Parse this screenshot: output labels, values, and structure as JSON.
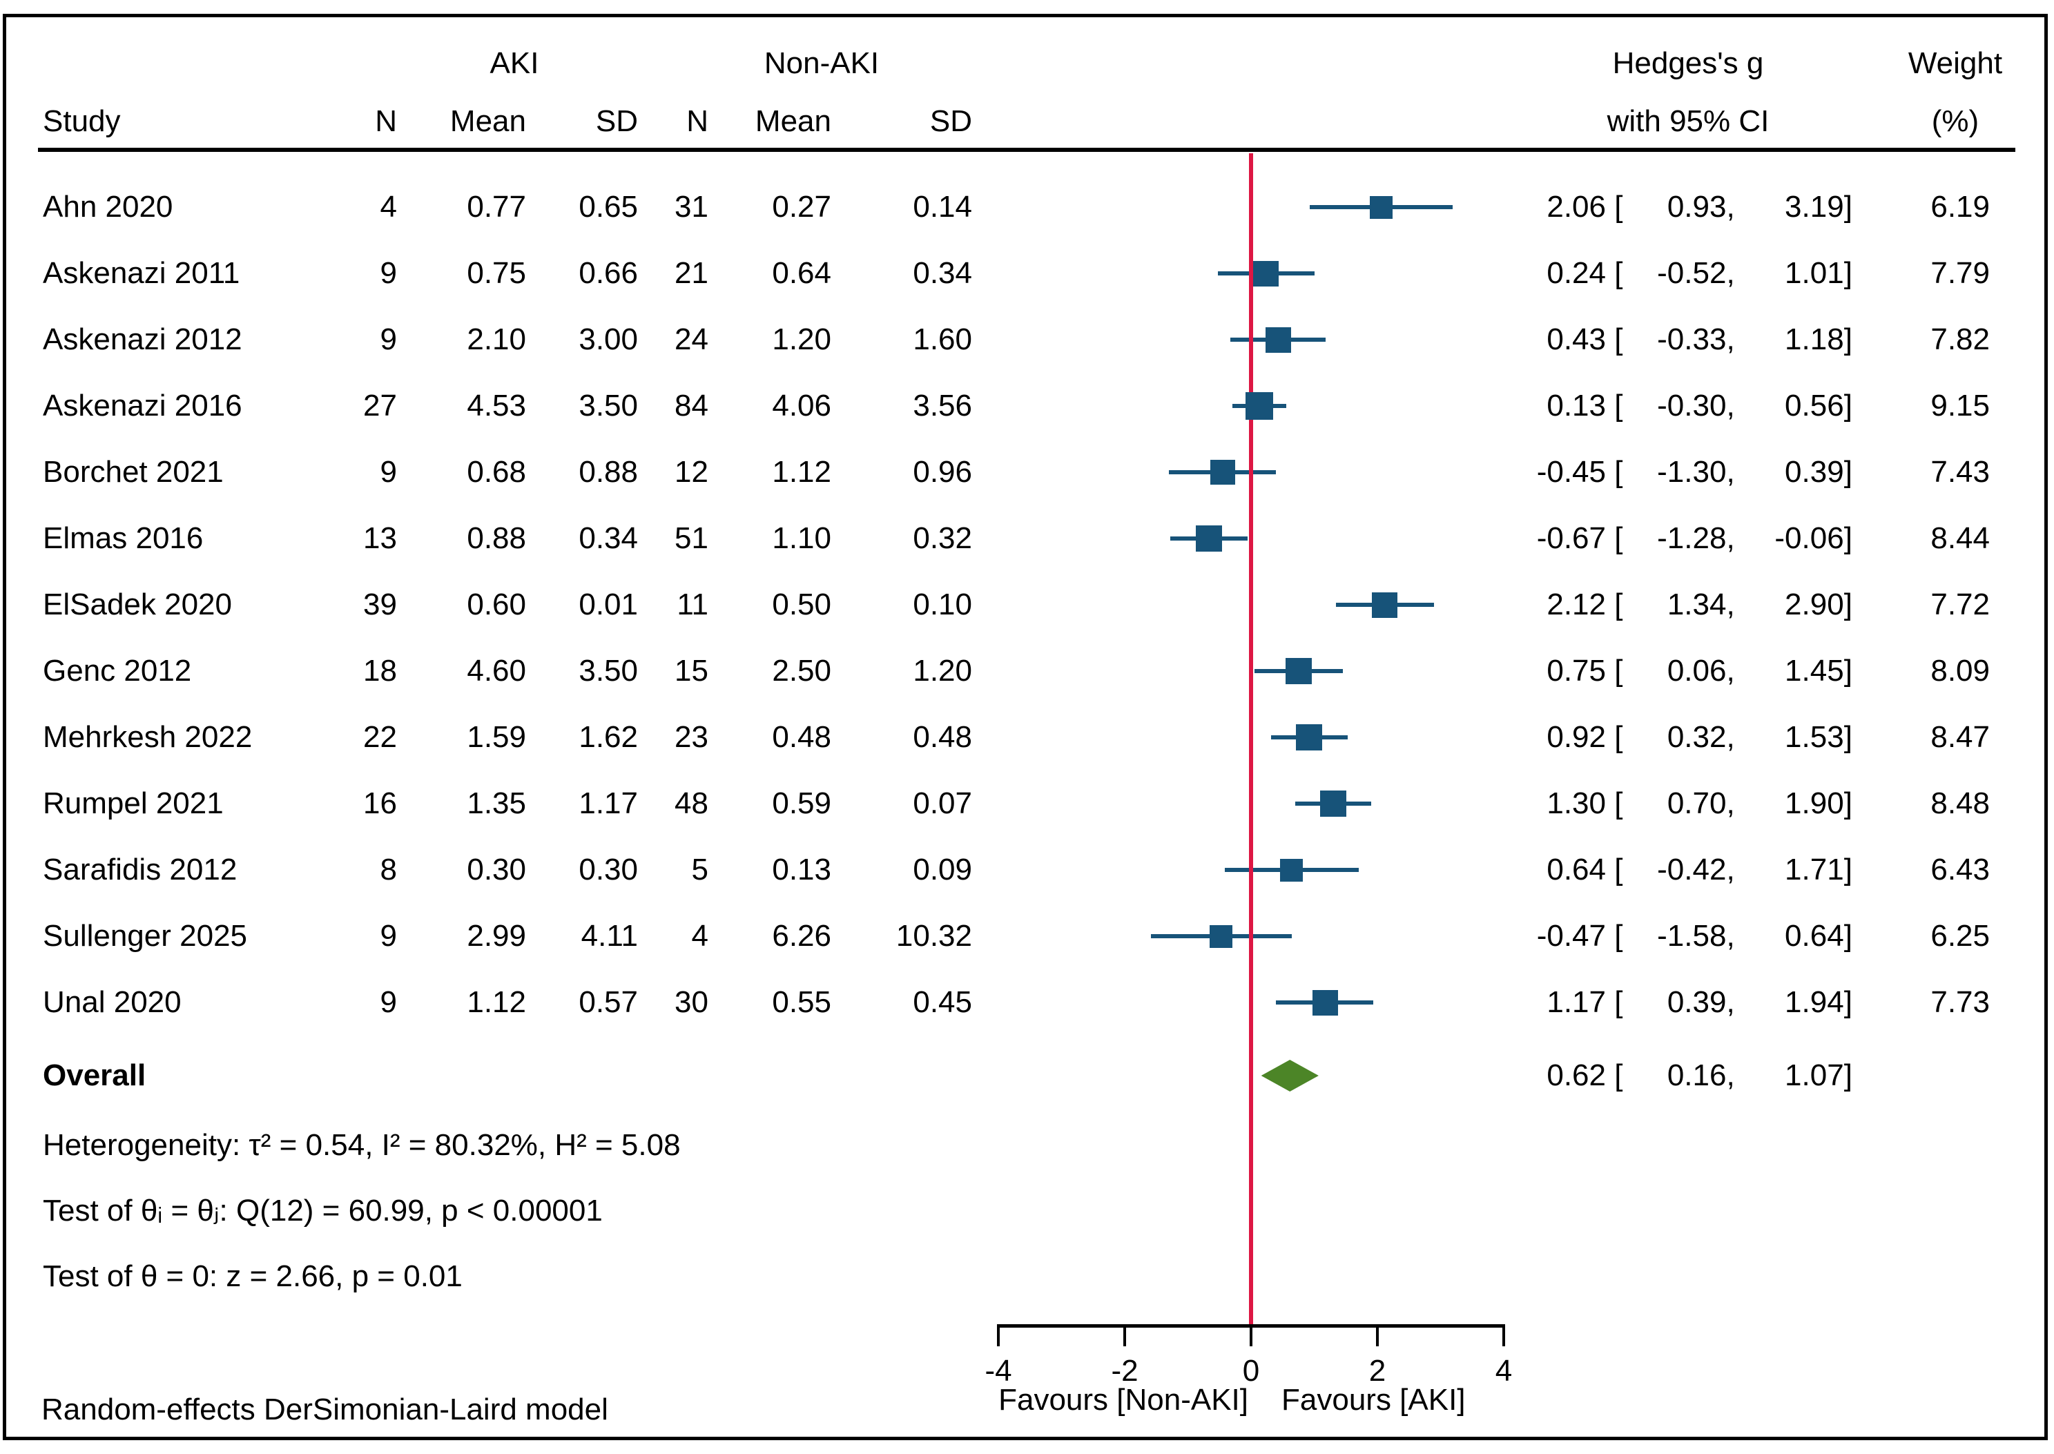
{
  "header": {
    "group1": "AKI",
    "group2": "Non-AKI",
    "study": "Study",
    "n": "N",
    "mean": "Mean",
    "sd": "SD",
    "effect_line1": "Hedges's g",
    "effect_line2": "with 95% CI",
    "weight_line1": "Weight",
    "weight_line2": "(%)"
  },
  "chart_data": {
    "type": "forest",
    "effect_measure": "Hedges's g with 95% CI",
    "axis": {
      "ticks": [
        -4,
        -2,
        0,
        2,
        4
      ],
      "range": [
        -4,
        4
      ],
      "zero_line": 0
    },
    "favours_left": "Favours [Non-AKI]",
    "favours_right": "Favours [AKI]",
    "studies": [
      {
        "study": "Ahn 2020",
        "aki_n": "4",
        "aki_mean": "0.77",
        "aki_sd": "0.65",
        "nonaki_n": "31",
        "nonaki_mean": "0.27",
        "nonaki_sd": "0.14",
        "est": 2.06,
        "lo": 0.93,
        "hi": 3.19,
        "weight": "6.19"
      },
      {
        "study": "Askenazi 2011",
        "aki_n": "9",
        "aki_mean": "0.75",
        "aki_sd": "0.66",
        "nonaki_n": "21",
        "nonaki_mean": "0.64",
        "nonaki_sd": "0.34",
        "est": 0.24,
        "lo": -0.52,
        "hi": 1.01,
        "weight": "7.79"
      },
      {
        "study": "Askenazi 2012",
        "aki_n": "9",
        "aki_mean": "2.10",
        "aki_sd": "3.00",
        "nonaki_n": "24",
        "nonaki_mean": "1.20",
        "nonaki_sd": "1.60",
        "est": 0.43,
        "lo": -0.33,
        "hi": 1.18,
        "weight": "7.82"
      },
      {
        "study": "Askenazi 2016",
        "aki_n": "27",
        "aki_mean": "4.53",
        "aki_sd": "3.50",
        "nonaki_n": "84",
        "nonaki_mean": "4.06",
        "nonaki_sd": "3.56",
        "est": 0.13,
        "lo": -0.3,
        "hi": 0.56,
        "weight": "9.15"
      },
      {
        "study": "Borchet 2021",
        "aki_n": "9",
        "aki_mean": "0.68",
        "aki_sd": "0.88",
        "nonaki_n": "12",
        "nonaki_mean": "1.12",
        "nonaki_sd": "0.96",
        "est": -0.45,
        "lo": -1.3,
        "hi": 0.39,
        "weight": "7.43"
      },
      {
        "study": "Elmas 2016",
        "aki_n": "13",
        "aki_mean": "0.88",
        "aki_sd": "0.34",
        "nonaki_n": "51",
        "nonaki_mean": "1.10",
        "nonaki_sd": "0.32",
        "est": -0.67,
        "lo": -1.28,
        "hi": -0.06,
        "weight": "8.44"
      },
      {
        "study": "ElSadek 2020",
        "aki_n": "39",
        "aki_mean": "0.60",
        "aki_sd": "0.01",
        "nonaki_n": "11",
        "nonaki_mean": "0.50",
        "nonaki_sd": "0.10",
        "est": 2.12,
        "lo": 1.34,
        "hi": 2.9,
        "weight": "7.72"
      },
      {
        "study": "Genc 2012",
        "aki_n": "18",
        "aki_mean": "4.60",
        "aki_sd": "3.50",
        "nonaki_n": "15",
        "nonaki_mean": "2.50",
        "nonaki_sd": "1.20",
        "est": 0.75,
        "lo": 0.06,
        "hi": 1.45,
        "weight": "8.09"
      },
      {
        "study": "Mehrkesh 2022",
        "aki_n": "22",
        "aki_mean": "1.59",
        "aki_sd": "1.62",
        "nonaki_n": "23",
        "nonaki_mean": "0.48",
        "nonaki_sd": "0.48",
        "est": 0.92,
        "lo": 0.32,
        "hi": 1.53,
        "weight": "8.47"
      },
      {
        "study": "Rumpel 2021",
        "aki_n": "16",
        "aki_mean": "1.35",
        "aki_sd": "1.17",
        "nonaki_n": "48",
        "nonaki_mean": "0.59",
        "nonaki_sd": "0.07",
        "est": 1.3,
        "lo": 0.7,
        "hi": 1.9,
        "weight": "8.48"
      },
      {
        "study": "Sarafidis 2012",
        "aki_n": "8",
        "aki_mean": "0.30",
        "aki_sd": "0.30",
        "nonaki_n": "5",
        "nonaki_mean": "0.13",
        "nonaki_sd": "0.09",
        "est": 0.64,
        "lo": -0.42,
        "hi": 1.71,
        "weight": "6.43"
      },
      {
        "study": "Sullenger 2025",
        "aki_n": "9",
        "aki_mean": "2.99",
        "aki_sd": "4.11",
        "nonaki_n": "4",
        "nonaki_mean": "6.26",
        "nonaki_sd": "10.32",
        "est": -0.47,
        "lo": -1.58,
        "hi": 0.64,
        "weight": "6.25"
      },
      {
        "study": "Unal 2020",
        "aki_n": "9",
        "aki_mean": "1.12",
        "aki_sd": "0.57",
        "nonaki_n": "30",
        "nonaki_mean": "0.55",
        "nonaki_sd": "0.45",
        "est": 1.17,
        "lo": 0.39,
        "hi": 1.94,
        "weight": "7.73"
      }
    ],
    "overall": {
      "label": "Overall",
      "est": 0.62,
      "lo": 0.16,
      "hi": 1.07
    }
  },
  "stats": {
    "heterogeneity": "Heterogeneity: τ² = 0.54, I² = 80.32%, H² = 5.08",
    "test_theta_ij": "Test of θᵢ = θⱼ: Q(12) = 60.99, p < 0.00001",
    "test_theta_zero": "Test of θ = 0: z = 2.66, p = 0.01"
  },
  "footer": {
    "model": "Random-effects DerSimonian-Laird model"
  },
  "colors": {
    "marker": "#175379",
    "ci_line": "#175379",
    "zero_line": "#dd1743",
    "diamond": "#4c8527",
    "rule": "#000000",
    "text": "#000000"
  }
}
